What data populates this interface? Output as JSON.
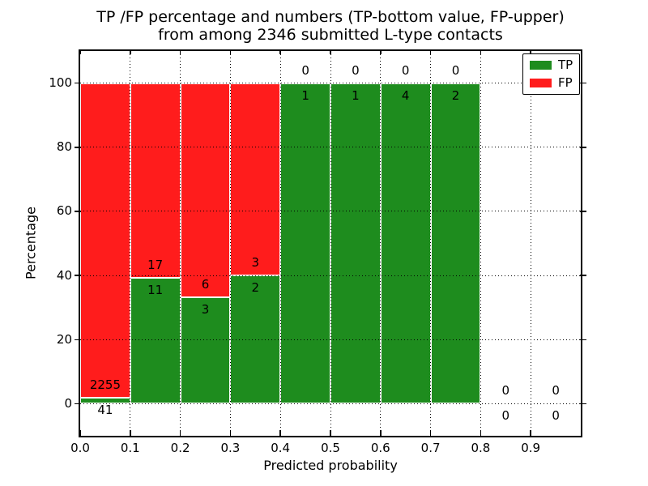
{
  "title": {
    "line1": "TP /FP percentage and numbers (TP-bottom value, FP-upper)",
    "line2": "from among 2346 submitted L-type contacts"
  },
  "chart_data": {
    "type": "bar",
    "stacked": true,
    "title": "TP /FP percentage and numbers (TP-bottom value, FP-upper) from among 2346 submitted L-type contacts",
    "xlabel": "Predicted probability",
    "ylabel": "Percentage",
    "xlim": [
      0.0,
      1.0
    ],
    "ylim": [
      -10,
      110
    ],
    "xtick_values": [
      0.0,
      0.1,
      0.2,
      0.3,
      0.4,
      0.5,
      0.6,
      0.7,
      0.8,
      0.9
    ],
    "xtick_labels": [
      "0.0",
      "0.1",
      "0.2",
      "0.3",
      "0.4",
      "0.5",
      "0.6",
      "0.7",
      "0.8",
      "0.9"
    ],
    "ytick_values": [
      0,
      20,
      40,
      60,
      80,
      100
    ],
    "ytick_labels": [
      "0",
      "20",
      "40",
      "60",
      "80",
      "100"
    ],
    "grid": {
      "linestyle": "dotted",
      "color": "#000000",
      "on": true
    },
    "bar_width": 0.1,
    "bar_edge_color": "#ffffff",
    "total_contacts": 2346,
    "series": [
      {
        "name": "TP",
        "color": "#1e8c1e"
      },
      {
        "name": "FP",
        "color": "#ff1c1c"
      }
    ],
    "legend": {
      "position": "upper right"
    },
    "bins": [
      {
        "range": [
          0.0,
          0.1
        ],
        "tp": 41,
        "fp": 2255,
        "tp_percent": 1.8,
        "fp_percent": 98.2
      },
      {
        "range": [
          0.1,
          0.2
        ],
        "tp": 11,
        "fp": 17,
        "tp_percent": 39.3,
        "fp_percent": 60.7
      },
      {
        "range": [
          0.2,
          0.3
        ],
        "tp": 3,
        "fp": 6,
        "tp_percent": 33.3,
        "fp_percent": 66.7
      },
      {
        "range": [
          0.3,
          0.4
        ],
        "tp": 2,
        "fp": 3,
        "tp_percent": 40.0,
        "fp_percent": 60.0
      },
      {
        "range": [
          0.4,
          0.5
        ],
        "tp": 1,
        "fp": 0,
        "tp_percent": 100.0,
        "fp_percent": 0.0
      },
      {
        "range": [
          0.5,
          0.6
        ],
        "tp": 1,
        "fp": 0,
        "tp_percent": 100.0,
        "fp_percent": 0.0
      },
      {
        "range": [
          0.6,
          0.7
        ],
        "tp": 4,
        "fp": 0,
        "tp_percent": 100.0,
        "fp_percent": 0.0
      },
      {
        "range": [
          0.7,
          0.8
        ],
        "tp": 2,
        "fp": 0,
        "tp_percent": 100.0,
        "fp_percent": 0.0
      },
      {
        "range": [
          0.8,
          0.9
        ],
        "tp": 0,
        "fp": 0,
        "tp_percent": 0.0,
        "fp_percent": 0.0
      },
      {
        "range": [
          0.9,
          1.0
        ],
        "tp": 0,
        "fp": 0,
        "tp_percent": 0.0,
        "fp_percent": 0.0
      }
    ]
  }
}
